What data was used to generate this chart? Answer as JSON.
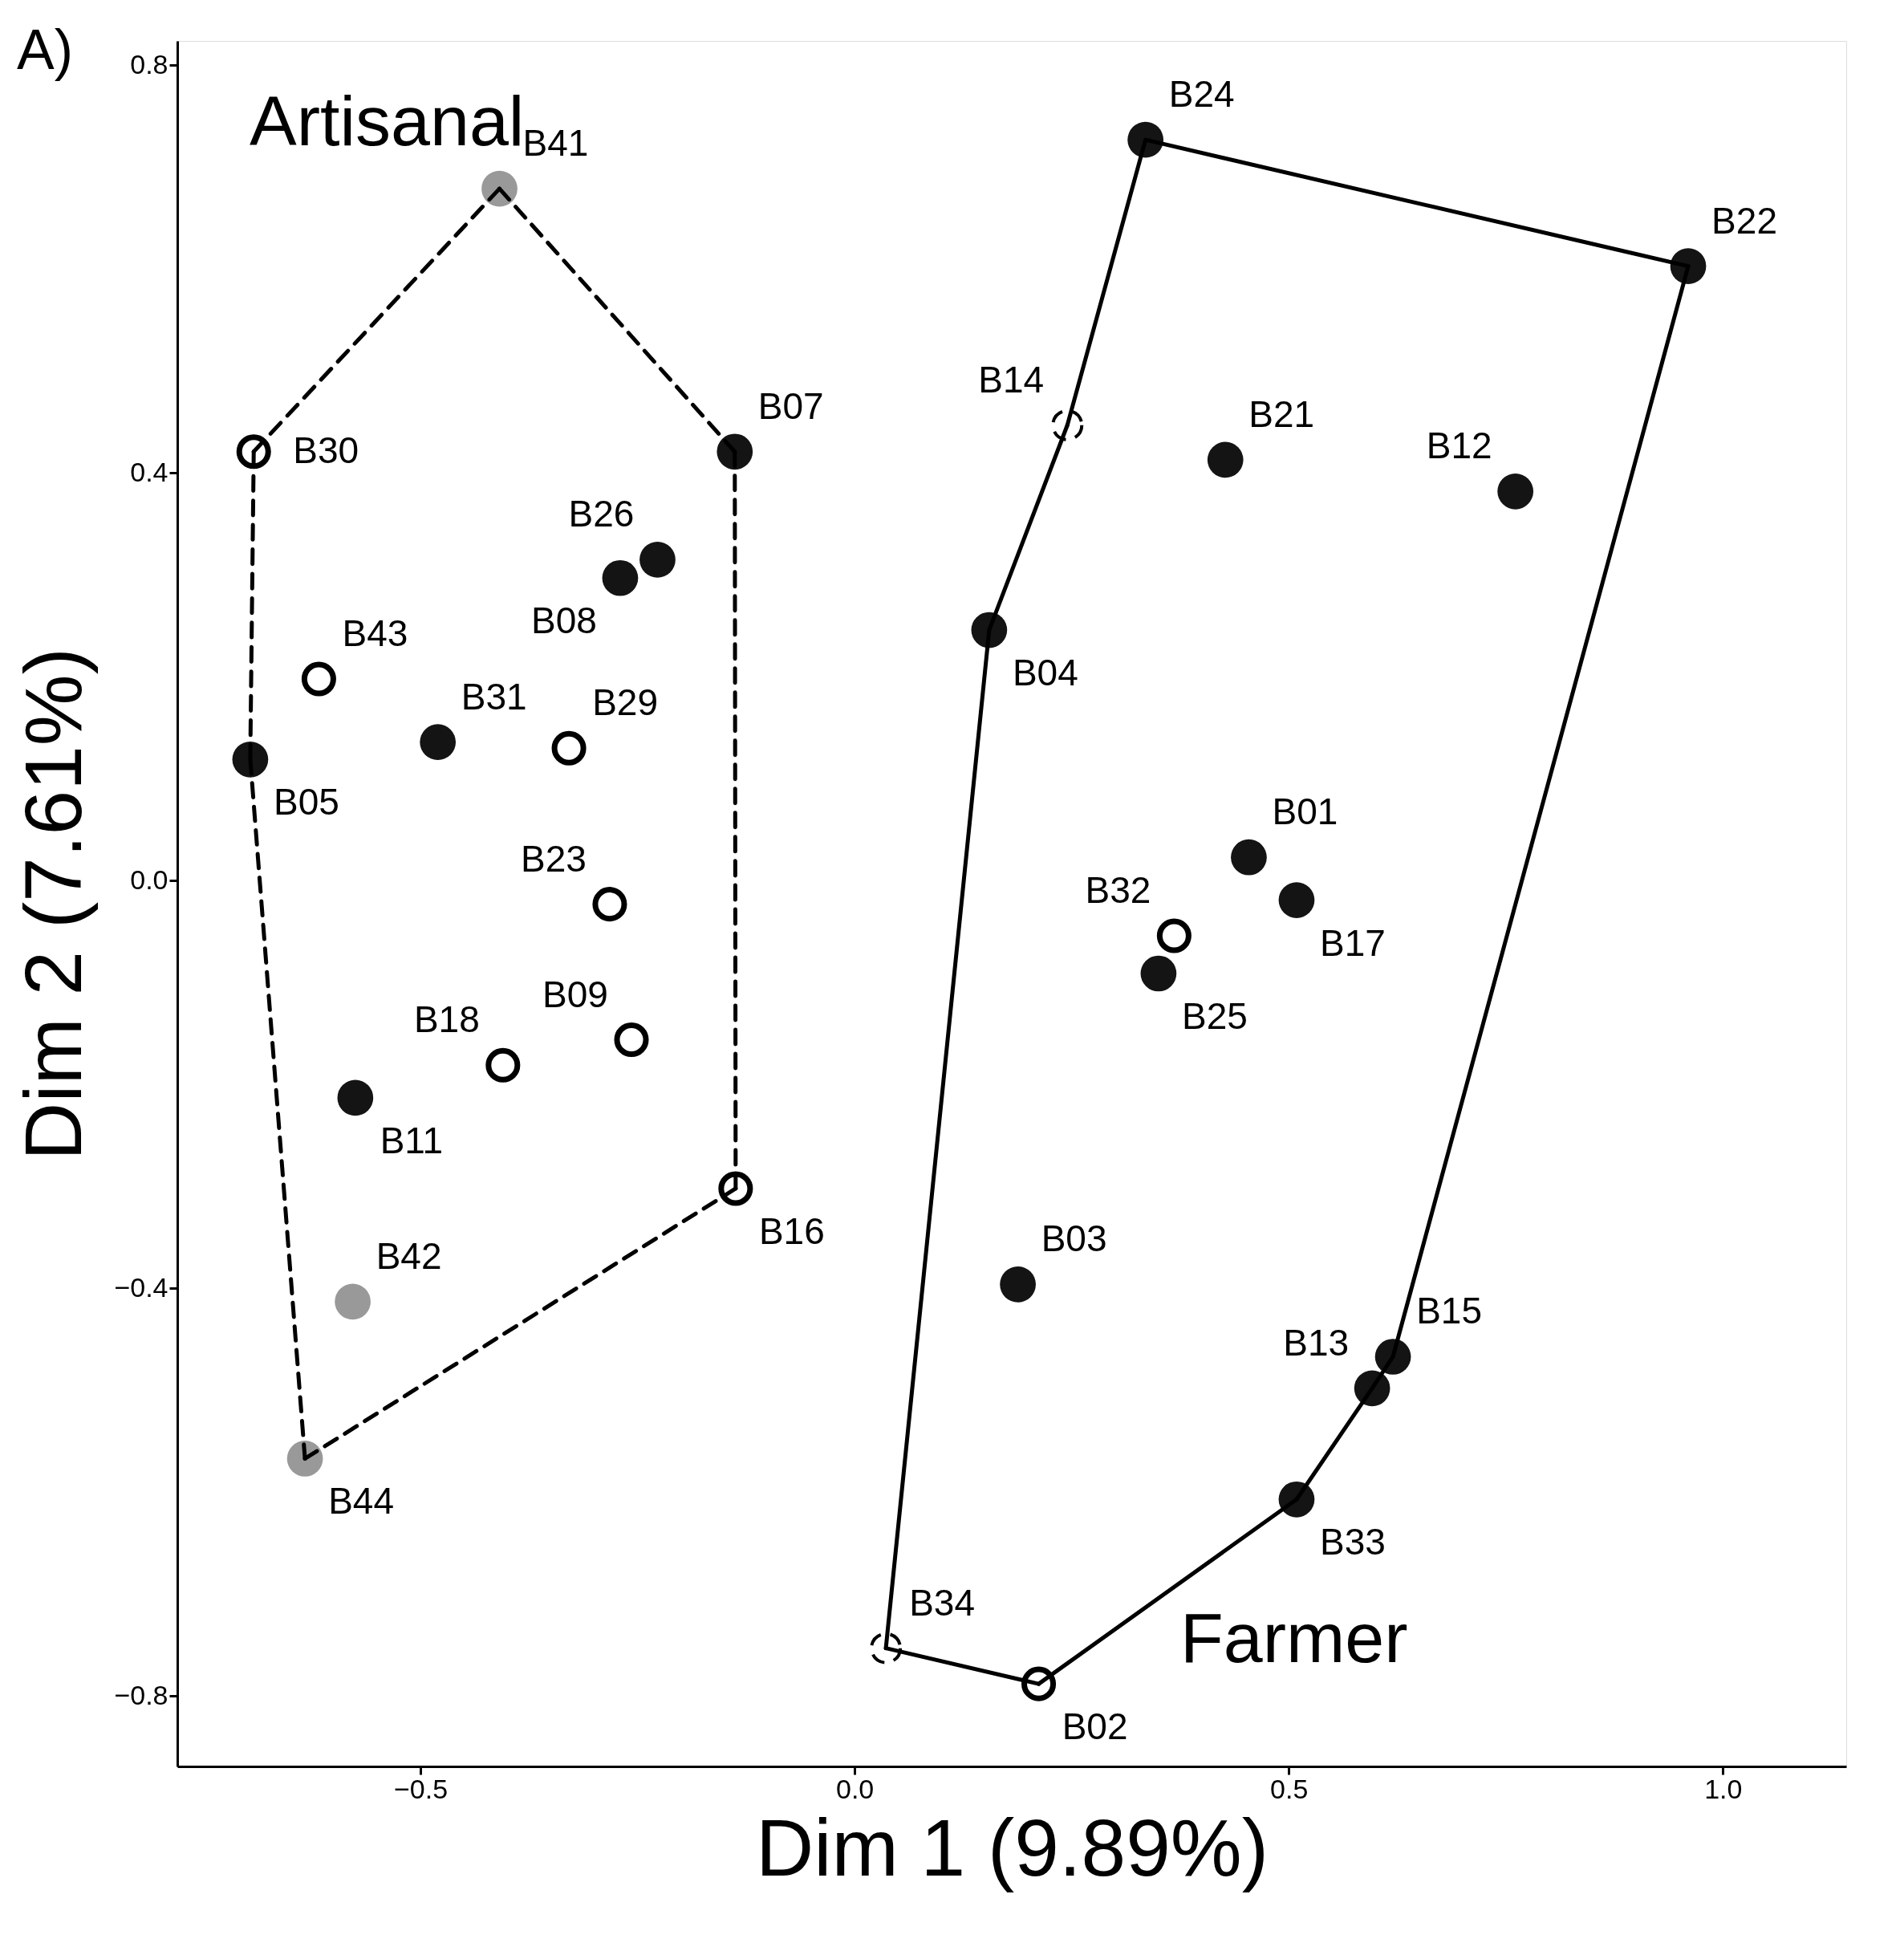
{
  "chart_data": {
    "type": "scatter",
    "xlabel": "Dim 1 (9.89%)",
    "ylabel": "Dim 2 (7.61%)",
    "xlim": [
      -0.78,
      1.142
    ],
    "ylim": [
      -0.869,
      0.824
    ],
    "xticks": [
      {
        "value": -0.5,
        "label": "−0.5"
      },
      {
        "value": 0.0,
        "label": "0.0"
      },
      {
        "value": 0.5,
        "label": "0.5"
      },
      {
        "value": 1.0,
        "label": "1.0"
      }
    ],
    "yticks": [
      {
        "value": -0.8,
        "label": "−0.8"
      },
      {
        "value": -0.4,
        "label": "−0.4"
      },
      {
        "value": 0.0,
        "label": "0.0"
      },
      {
        "value": 0.4,
        "label": "0.4"
      },
      {
        "value": 0.8,
        "label": "0.8"
      }
    ],
    "grid": false,
    "series": [
      {
        "type": "line",
        "color": "#000000",
        "line_style": "dashed",
        "x": [
          -0.409,
          -0.138
        ],
        "values": [
          0.679,
          0.421
        ]
      },
      {
        "type": "line",
        "color": "#000000",
        "line_style": "dashed",
        "x": [
          -0.138,
          -0.137
        ],
        "values": [
          0.421,
          -0.302
        ]
      },
      {
        "type": "line",
        "color": "#000000",
        "line_style": "dashed",
        "x": [
          -0.633,
          -0.137
        ],
        "values": [
          -0.567,
          -0.302
        ]
      },
      {
        "type": "line",
        "color": "#000000",
        "line_style": "dashed",
        "x": [
          -0.696,
          -0.633
        ],
        "values": [
          0.119,
          -0.567
        ]
      },
      {
        "type": "line",
        "color": "#000000",
        "line_style": "dashed",
        "x": [
          -0.696,
          -0.692
        ],
        "values": [
          0.119,
          0.421
        ]
      },
      {
        "type": "line",
        "color": "#000000",
        "line_style": "dashed",
        "x": [
          -0.692,
          -0.409
        ],
        "values": [
          0.421,
          0.679
        ]
      },
      {
        "type": "line",
        "color": "#000000",
        "line_style": "solid",
        "x": [
          0.335,
          0.96
        ],
        "values": [
          0.727,
          0.603
        ]
      },
      {
        "type": "line",
        "color": "#000000",
        "line_style": "solid",
        "x": [
          0.62,
          0.96
        ],
        "values": [
          -0.467,
          0.603
        ]
      },
      {
        "type": "line",
        "color": "#000000",
        "line_style": "solid",
        "x": [
          0.596,
          0.62
        ],
        "values": [
          -0.498,
          -0.467
        ]
      },
      {
        "type": "line",
        "color": "#000000",
        "line_style": "solid",
        "x": [
          0.509,
          0.596
        ],
        "values": [
          -0.607,
          -0.498
        ]
      },
      {
        "type": "line",
        "color": "#000000",
        "line_style": "solid",
        "x": [
          0.212,
          0.509
        ],
        "values": [
          -0.788,
          -0.607
        ]
      },
      {
        "type": "line",
        "color": "#000000",
        "line_style": "solid",
        "x": [
          0.036,
          0.212
        ],
        "values": [
          -0.753,
          -0.788
        ]
      },
      {
        "type": "line",
        "color": "#000000",
        "line_style": "solid",
        "x": [
          0.036,
          0.155
        ],
        "values": [
          -0.753,
          0.246
        ]
      },
      {
        "type": "line",
        "color": "#000000",
        "line_style": "solid",
        "x": [
          0.155,
          0.245
        ],
        "values": [
          0.246,
          0.447
        ]
      },
      {
        "type": "line",
        "color": "#000000",
        "line_style": "solid",
        "x": [
          0.245,
          0.335
        ],
        "values": [
          0.447,
          0.727
        ]
      },
      {
        "marker": "circle",
        "color": "#141414",
        "x": [
          -0.138,
          -0.227,
          -0.27,
          -0.48,
          -0.696,
          -0.575,
          0.335,
          0.96,
          0.427,
          0.761,
          0.155,
          0.454,
          0.509,
          0.35,
          0.188,
          0.62,
          0.596,
          0.509
        ],
        "values": [
          0.421,
          0.315,
          0.297,
          0.136,
          0.119,
          -0.213,
          0.727,
          0.603,
          0.413,
          0.382,
          0.246,
          0.023,
          -0.019,
          -0.091,
          -0.396,
          -0.467,
          -0.498,
          -0.607
        ],
        "value_labels": [
          "B07",
          "B26",
          "B08",
          "B31",
          "B05",
          "B11",
          "B24",
          "B22",
          "B21",
          "B12",
          "B04",
          "B01",
          "B17",
          "B25",
          "B03",
          "B15",
          "B13",
          "B33"
        ]
      },
      {
        "marker": "circle",
        "color": "#000000",
        "line_style": "solid",
        "x": [
          -0.692,
          -0.617,
          -0.329,
          -0.282,
          -0.257,
          -0.405,
          -0.137,
          0.368,
          0.212
        ],
        "values": [
          0.421,
          0.198,
          0.13,
          -0.023,
          -0.156,
          -0.181,
          -0.302,
          -0.054,
          -0.788
        ],
        "value_labels": [
          "B30",
          "B43",
          "B29",
          "B23",
          "B09",
          "B18",
          "B16",
          "B32",
          "B02"
        ]
      },
      {
        "marker": "circle",
        "color": "#000000",
        "line_style": "dashed",
        "x": [
          0.245,
          0.036
        ],
        "values": [
          0.447,
          -0.753
        ],
        "value_labels": [
          "B14",
          "B34"
        ]
      },
      {
        "marker": "circle",
        "color": "#999999",
        "x": [
          -0.409,
          -0.578,
          -0.633
        ],
        "values": [
          0.679,
          -0.413,
          -0.567
        ],
        "value_labels": [
          "B41",
          "B42",
          "B44"
        ]
      }
    ],
    "annotations": [
      "A)",
      "Artisanal",
      "Farmer"
    ]
  }
}
